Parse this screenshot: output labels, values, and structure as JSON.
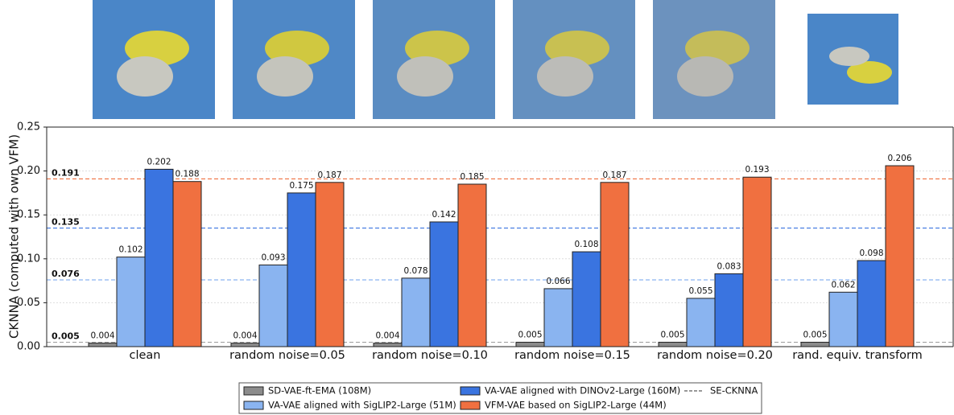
{
  "chart_data": {
    "type": "bar",
    "ylabel": "CKNNA (computed with own VFM)",
    "categories": [
      "clean",
      "random noise=0.05",
      "random noise=0.10",
      "random noise=0.15",
      "random noise=0.20",
      "rand. equiv. transform"
    ],
    "series": [
      {
        "name": "SD-VAE-ft-EMA (108M)",
        "color": "#8c8c8c",
        "values": [
          0.004,
          0.004,
          0.004,
          0.005,
          0.005,
          0.005
        ]
      },
      {
        "name": "VA-VAE aligned with SigLIP2-Large (51M)",
        "color": "#8ab4f0",
        "values": [
          0.102,
          0.093,
          0.078,
          0.066,
          0.055,
          0.062
        ]
      },
      {
        "name": "VA-VAE aligned with DINOv2-Large (160M)",
        "color": "#3a74e0",
        "values": [
          0.202,
          0.175,
          0.142,
          0.108,
          0.083,
          0.098
        ]
      },
      {
        "name": "VFM-VAE based on SigLIP2-Large (44M)",
        "color": "#f07040",
        "values": [
          0.188,
          0.187,
          0.185,
          0.187,
          0.193,
          0.206
        ]
      }
    ],
    "reference_name": "SE-CKNNA",
    "reference_lines": [
      {
        "value": 0.191,
        "color": "#f07040"
      },
      {
        "value": 0.135,
        "color": "#3a74e0"
      },
      {
        "value": 0.076,
        "color": "#8ab4f0"
      },
      {
        "value": 0.005,
        "color": "#a0a0a0"
      }
    ],
    "ylim": [
      0,
      0.25
    ],
    "yticks": [
      {
        "value": 0,
        "label": "0.00"
      },
      0.05,
      {
        "value": 0.1,
        "label": "0.10"
      },
      0.15,
      {
        "value": 0.2,
        "label": "0.20"
      },
      0.25
    ],
    "grid": true
  }
}
